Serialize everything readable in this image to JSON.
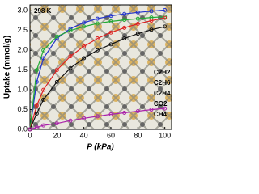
{
  "chart_data": {
    "type": "line",
    "annotation": "298 K",
    "x_label": "P (kPa)",
    "y_label": "Uptake (mmol/g)",
    "x": [
      0,
      5,
      10,
      20,
      30,
      40,
      50,
      60,
      70,
      80,
      90,
      100
    ],
    "series": [
      {
        "name": "C2H2",
        "color": "#2233cc",
        "values": [
          0,
          1.2,
          1.8,
          2.3,
          2.55,
          2.7,
          2.8,
          2.87,
          2.92,
          2.96,
          2.99,
          3.02
        ]
      },
      {
        "name": "C2H6",
        "color": "#22aa33",
        "values": [
          0,
          1.5,
          2.0,
          2.35,
          2.5,
          2.6,
          2.68,
          2.73,
          2.77,
          2.8,
          2.83,
          2.85
        ]
      },
      {
        "name": "C2H4",
        "color": "#dd2222",
        "values": [
          0,
          0.6,
          1.0,
          1.5,
          1.85,
          2.1,
          2.3,
          2.45,
          2.57,
          2.67,
          2.75,
          2.82
        ]
      },
      {
        "name": "CO2",
        "color": "#111111",
        "values": [
          0,
          0.4,
          0.75,
          1.2,
          1.55,
          1.8,
          2.0,
          2.15,
          2.3,
          2.42,
          2.52,
          2.6
        ]
      },
      {
        "name": "CH4",
        "color": "#aa22aa",
        "values": [
          0,
          0.05,
          0.1,
          0.15,
          0.22,
          0.28,
          0.33,
          0.38,
          0.42,
          0.46,
          0.5,
          0.53
        ]
      }
    ],
    "xlim": [
      0,
      105
    ],
    "xticks": [
      0,
      20,
      40,
      60,
      80,
      100
    ],
    "ylim": [
      0,
      3.15
    ],
    "yticks": [
      {
        "value": 0,
        "label": "0.0"
      },
      {
        "value": 0.5,
        "label": "0.5"
      },
      {
        "value": 1,
        "label": "1.0"
      },
      {
        "value": 1.5,
        "label": "1.5"
      },
      {
        "value": 2,
        "label": "2.0"
      },
      {
        "value": 2.5,
        "label": "2.5"
      },
      {
        "value": 3,
        "label": "3.0"
      }
    ]
  }
}
